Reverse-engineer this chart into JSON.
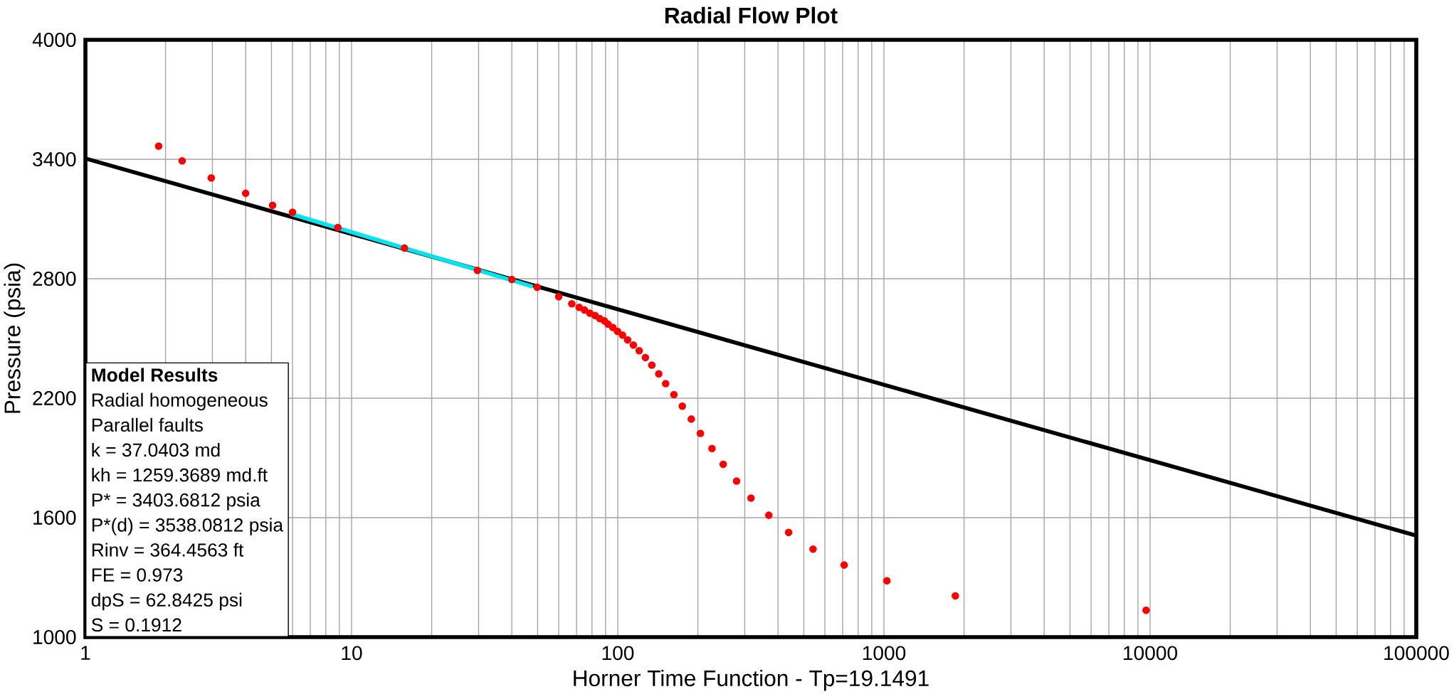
{
  "chart_data": {
    "type": "scatter",
    "title": "Radial Flow Plot",
    "xlabel": "Horner Time Function - Tp=19.1491",
    "ylabel": "Pressure (psia)",
    "log": "x",
    "grid": true,
    "xlim": [
      1,
      100000
    ],
    "ylim": [
      1000,
      4000
    ],
    "xticks": [
      1,
      10,
      100,
      1000,
      10000,
      100000
    ],
    "yticks": [
      1000,
      1600,
      2200,
      2800,
      3400,
      4000
    ],
    "series": [
      {
        "marker": "circle",
        "color": "#ff0000",
        "x": [
          1.884,
          2.31,
          2.97,
          4.0,
          5.05,
          6.0,
          8.88,
          15.8,
          29.7,
          40.0,
          49.8,
          60,
          67.2,
          71.6,
          75.0,
          78.6,
          82.2,
          85.6,
          89.1,
          91.9,
          95.8,
          99.8,
          104.2,
          108.9,
          114.5,
          120.4,
          127,
          134.3,
          142.6,
          151.4,
          162.6,
          174.8,
          189,
          204.4,
          226,
          249,
          279.6,
          316.7,
          369.5,
          438.5,
          541.6,
          709,
          1026,
          1855,
          9660
        ],
        "values": [
          3466,
          3392,
          3306,
          3229,
          3169,
          3134,
          3057,
          2954,
          2842,
          2796,
          2757,
          2710,
          2674,
          2656,
          2643,
          2627,
          2615,
          2600,
          2588,
          2572,
          2555,
          2536,
          2517,
          2493,
          2467,
          2438,
          2404,
          2366,
          2322,
          2273,
          2218,
          2160,
          2095,
          2023,
          1947,
          1868,
          1784,
          1698,
          1612,
          1526,
          1442,
          1362,
          1283,
          1207,
          1135
        ]
      },
      {
        "type": "line",
        "marker": "none",
        "color": "#000000",
        "x": [
          1,
          100000
        ],
        "values": [
          3404,
          1510
        ]
      },
      {
        "type": "line",
        "marker": "none",
        "color": "#00e5ee",
        "x": [
          5.9,
          48
        ],
        "values": [
          3126,
          2760
        ]
      }
    ],
    "annotations": [
      "**Model Results**",
      "Radial homogeneous",
      "Parallel faults",
      "k = 37.0403 md",
      "kh = 1259.3689 md.ft",
      "P* = 3403.6812 psia",
      "P*(d) = 3538.0812 psia",
      "Rinv = 364.4563 ft",
      "FE = 0.973",
      "dpS = 62.8425 psi",
      "S = 0.1912"
    ]
  }
}
